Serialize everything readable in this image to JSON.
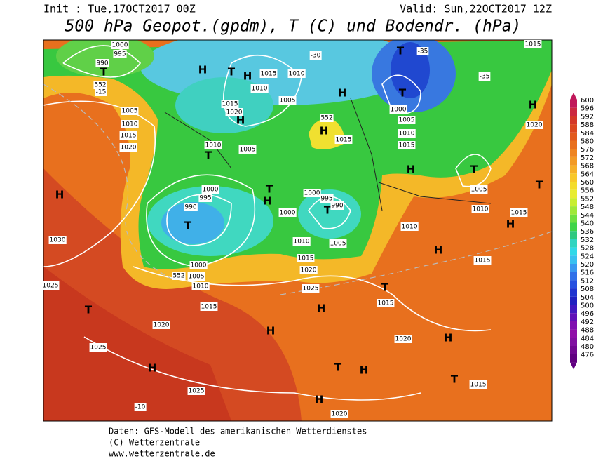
{
  "header": {
    "init": "Init : Tue,17OCT2017 00Z",
    "valid": "Valid: Sun,22OCT2017 12Z",
    "title": "500 hPa Geopot.(gpdm), T (C) und Bodendr. (hPa)"
  },
  "legend": {
    "values": [
      600,
      596,
      592,
      588,
      584,
      580,
      576,
      572,
      568,
      564,
      560,
      556,
      552,
      548,
      544,
      540,
      536,
      532,
      528,
      524,
      520,
      516,
      512,
      508,
      504,
      500,
      496,
      492,
      488,
      484,
      480,
      476
    ],
    "colors": [
      "#c0185a",
      "#cc2840",
      "#d43828",
      "#dc4820",
      "#e25a1e",
      "#e8701e",
      "#ee8420",
      "#f29a24",
      "#f6b028",
      "#f8c82a",
      "#f4dc2c",
      "#e8ec30",
      "#c8ee30",
      "#a0e838",
      "#70e040",
      "#40d448",
      "#30c880",
      "#30d4c0",
      "#30d8e8",
      "#38c0f0",
      "#3898f0",
      "#3070e8",
      "#2850e0",
      "#2034d0",
      "#2020c0",
      "#4018c0",
      "#6010b8",
      "#8010b0",
      "#9010a8",
      "#8010a0",
      "#700890",
      "#600080"
    ]
  },
  "map": {
    "labels": [
      "1000",
      "995",
      "990",
      "T",
      "552",
      "-15",
      "1005",
      "1010",
      "1015",
      "1020",
      "H",
      "1030",
      "1025",
      "T",
      "1020",
      "1025",
      "H",
      "1025",
      "-10",
      "T",
      "1000",
      "995",
      "990",
      "1000",
      "552",
      "1005",
      "1010",
      "1015",
      "H",
      "H",
      "T",
      "H",
      "1020",
      "H",
      "1015",
      "T",
      "1020",
      "H",
      "T",
      "1015",
      "H",
      "1015",
      "H",
      "1015",
      "1010",
      "T",
      "1005",
      "T",
      "H",
      "1020",
      "T",
      "1000",
      "1005",
      "1010",
      "1015",
      "H",
      "552",
      "1015",
      "H",
      "T",
      "995",
      "990",
      "1000",
      "1005",
      "1010",
      "H",
      "T",
      "1000",
      "1010",
      "H",
      "T",
      "H",
      "T",
      "1010",
      "1015",
      "1010",
      "1010",
      "1005",
      "1015",
      "1020",
      "H",
      "1005",
      "1015",
      "-35",
      "-35",
      "-30",
      "T",
      "H",
      "1020",
      "1025",
      "1015"
    ]
  },
  "footer": {
    "lines": [
      "Daten: GFS-Modell des amerikanischen Wetterdienstes",
      "(C) Wetterzentrale",
      "www.wetterzentrale.de"
    ]
  }
}
